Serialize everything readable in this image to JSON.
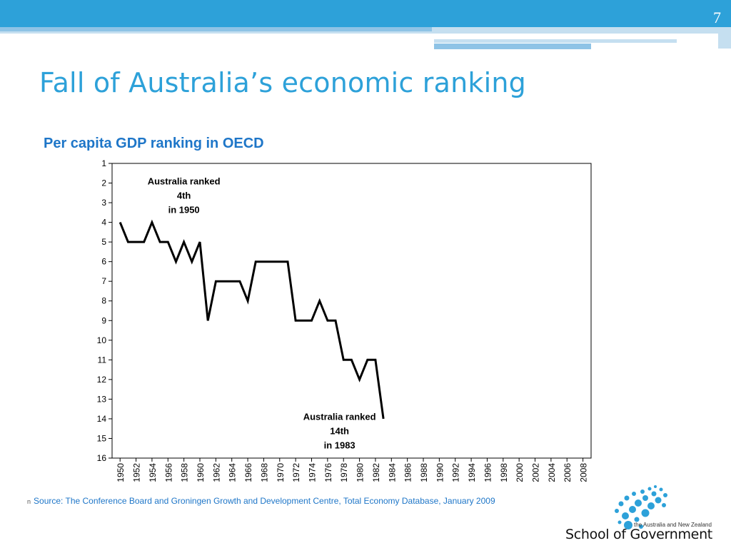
{
  "slide": {
    "number": "7",
    "title": "Fall of Australia’s economic ranking",
    "source_bullet": "n",
    "source": "Source: The Conference Board and Groningen Growth and Development Centre, Total Economy Database, January 2009"
  },
  "logo": {
    "small_text": "the Australia and New Zealand",
    "big_text": "School of Government",
    "dot_color": "#2da1d9"
  },
  "colors": {
    "accent": "#2da1d9",
    "subtitle": "#1e76c8",
    "bar_light": "#c5dff0",
    "bar_mid": "#8ec3e6"
  },
  "chart_data": {
    "type": "line",
    "title": "Per capita GDP ranking in OECD",
    "xlabel": "",
    "ylabel": "",
    "ylim": [
      1,
      16
    ],
    "y_inverted": true,
    "yticks": [
      1,
      2,
      3,
      4,
      5,
      6,
      7,
      8,
      9,
      10,
      11,
      12,
      13,
      14,
      15,
      16
    ],
    "xlim": [
      1950,
      2009
    ],
    "xticks": [
      "1950",
      "1952",
      "1954",
      "1956",
      "1958",
      "1960",
      "1962",
      "1964",
      "1966",
      "1968",
      "1970",
      "1972",
      "1974",
      "1976",
      "1978",
      "1980",
      "1982",
      "1984",
      "1986",
      "1988",
      "1990",
      "1992",
      "1994",
      "1996",
      "1998",
      "2000",
      "2002",
      "2004",
      "2006",
      "2008"
    ],
    "grid": false,
    "series": [
      {
        "x": [
          1950,
          1951,
          1952,
          1953,
          1954,
          1955,
          1956,
          1957,
          1958,
          1959,
          1960,
          1961,
          1962,
          1963,
          1964,
          1965,
          1966,
          1967,
          1968,
          1969,
          1970,
          1971,
          1972,
          1973,
          1974,
          1975,
          1976,
          1977,
          1978,
          1979,
          1980,
          1981,
          1982,
          1983
        ],
        "values": [
          4,
          5,
          5,
          5,
          4,
          5,
          5,
          6,
          5,
          6,
          5,
          9,
          7,
          7,
          7,
          7,
          8,
          6,
          6,
          6,
          6,
          6,
          9,
          9,
          9,
          8,
          9,
          9,
          11,
          11,
          12,
          11,
          11,
          14
        ],
        "color": "#000000"
      }
    ],
    "annotations": [
      {
        "lines": [
          "Australia ranked",
          "4th",
          "in 1950"
        ],
        "x": 1958,
        "y": 2.5
      },
      {
        "lines": [
          "Australia ranked",
          "14th",
          "in 1983"
        ],
        "x": 1977.5,
        "y": 14.5
      }
    ]
  }
}
